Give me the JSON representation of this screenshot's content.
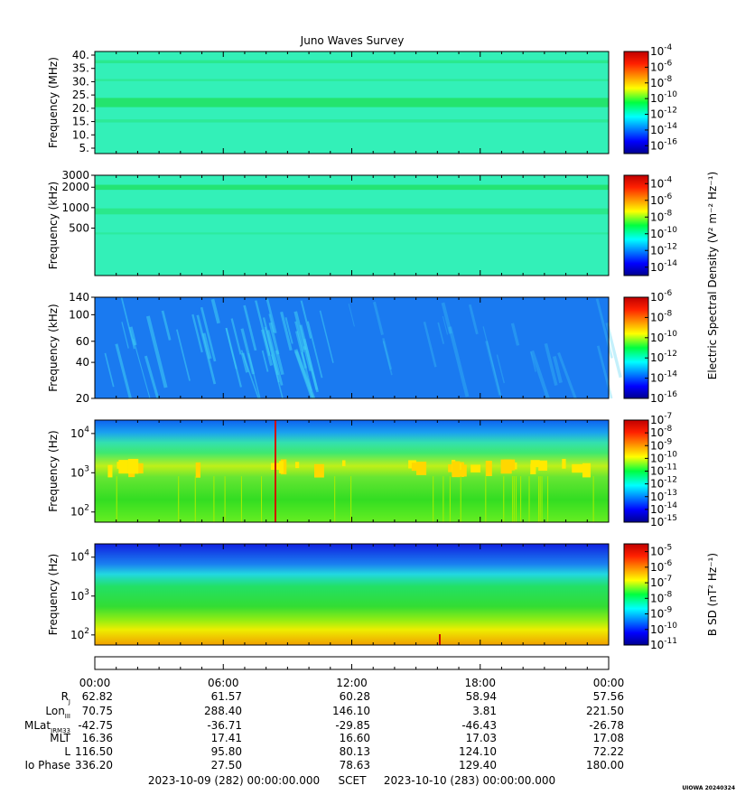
{
  "title": "Juno Waves Survey",
  "footer_left": "2023-10-09 (282) 00:00:00.000",
  "footer_mid": "SCET",
  "footer_right": "2023-10-10 (283) 00:00:00.000",
  "credit": "UIOWA 20240324",
  "shared_colorbar_label": "Electric Spectral Density (V² m⁻² Hz⁻¹)",
  "x_ticks": [
    "00:00",
    "06:00",
    "12:00",
    "18:00",
    "00:00"
  ],
  "ephemeris": {
    "labels": [
      "R",
      "Lon",
      "MLat",
      "MLT",
      "L",
      "Io Phase"
    ],
    "label_subscripts": [
      "J",
      "III",
      "JRM33",
      "",
      "",
      ""
    ],
    "columns": [
      [
        "62.82",
        "70.75",
        "-42.75",
        "16.36",
        "116.50",
        "336.20"
      ],
      [
        "61.57",
        "288.40",
        "-36.71",
        "17.41",
        "95.80",
        "27.50"
      ],
      [
        "60.28",
        "146.10",
        "-29.85",
        "16.60",
        "80.13",
        "78.63"
      ],
      [
        "58.94",
        "3.81",
        "-46.43",
        "17.03",
        "124.10",
        "129.40"
      ],
      [
        "57.56",
        "221.50",
        "-26.78",
        "17.08",
        "72.22",
        "180.00"
      ]
    ]
  },
  "chart_data": [
    {
      "type": "heatmap",
      "ylabel": "Frequency (MHz)",
      "yticks": [
        "40.",
        "35.",
        "30.",
        "25.",
        "20.",
        "15.",
        "10.",
        "5."
      ],
      "ylim": [
        3.5,
        41.5
      ],
      "yscale": "linear",
      "colorbar_ticks": [
        "-4",
        "-6",
        "-8",
        "-10",
        "-12",
        "-14",
        "-16"
      ],
      "colorbar_range_log10": [
        -17,
        -4
      ],
      "dominant_color": "#33f0b8",
      "band_color": "#22e266"
    },
    {
      "type": "heatmap",
      "ylabel": "Frequency (kHz)",
      "yticks": [
        "3000",
        "2000",
        "1000",
        "500"
      ],
      "yscale": "log",
      "colorbar_ticks": [
        "-4",
        "-6",
        "-8",
        "-10",
        "-12",
        "-14"
      ],
      "colorbar_range_log10": [
        -15,
        -3
      ],
      "dominant_color": "#33f0b8",
      "band_color": "#22e266"
    },
    {
      "type": "heatmap",
      "ylabel": "Frequency (kHz)",
      "yticks": [
        "140",
        "100",
        "60",
        "40",
        "20"
      ],
      "yscale": "log",
      "colorbar_ticks": [
        "-6",
        "-8",
        "-10",
        "-12",
        "-14",
        "-16"
      ],
      "colorbar_range_log10": [
        -16,
        -6
      ],
      "dominant_color": "#1a7af0",
      "streak_color": "#3fd0f5"
    },
    {
      "type": "heatmap",
      "ylabel": "Frequency (Hz)",
      "yticks": [
        "4",
        "3",
        "2"
      ],
      "yscale": "log",
      "colorbar_ticks": [
        "-7",
        "-8",
        "-9",
        "-10",
        "-11",
        "-12",
        "-13",
        "-14",
        "-15"
      ],
      "colorbar_range_log10": [
        -15,
        -7
      ]
    },
    {
      "type": "heatmap",
      "ylabel": "Frequency (Hz)",
      "yticks": [
        "4",
        "3",
        "2"
      ],
      "yscale": "log",
      "colorbar_ticks": [
        "-5",
        "-6",
        "-7",
        "-8",
        "-9",
        "-10",
        "-11"
      ],
      "colorbar_range_log10": [
        -11,
        -4.5
      ],
      "colorbar_label": "B SD (nT² Hz⁻¹)"
    }
  ]
}
